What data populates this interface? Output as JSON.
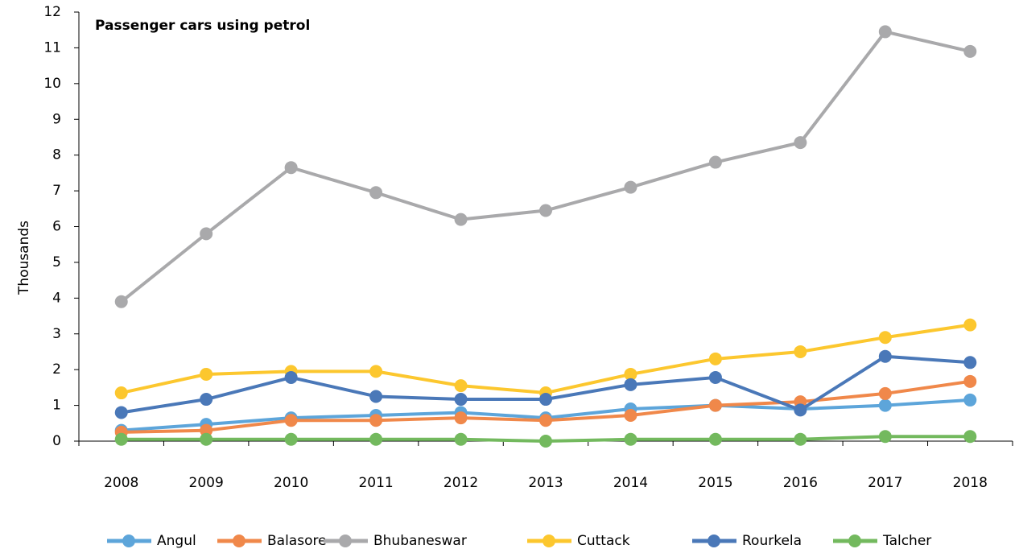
{
  "chart_data": {
    "type": "line",
    "title": "Passenger cars using petrol",
    "y_label": "Thousands",
    "categories": [
      "2008",
      "2009",
      "2010",
      "2011",
      "2012",
      "2013",
      "2014",
      "2015",
      "2016",
      "2017",
      "2018"
    ],
    "ylim": [
      0,
      12
    ],
    "yticks": [
      0,
      1,
      2,
      3,
      4,
      5,
      6,
      7,
      8,
      9,
      10,
      11,
      12
    ],
    "grid": false,
    "legend": "bottom",
    "series": [
      {
        "name": "Angul",
        "color": "#5da5da",
        "values": [
          0.3,
          0.47,
          0.65,
          0.72,
          0.8,
          0.65,
          0.9,
          1.0,
          0.9,
          1.0,
          1.15
        ]
      },
      {
        "name": "Balasore",
        "color": "#f0884a",
        "values": [
          0.25,
          0.3,
          0.58,
          0.58,
          0.65,
          0.58,
          0.72,
          1.0,
          1.1,
          1.33,
          1.67
        ]
      },
      {
        "name": "Bhubaneswar",
        "color": "#a9a9ab",
        "values": [
          3.9,
          5.8,
          7.65,
          6.95,
          6.2,
          6.45,
          7.1,
          7.8,
          8.35,
          11.45,
          10.9
        ]
      },
      {
        "name": "Cuttack",
        "color": "#fcc72e",
        "values": [
          1.35,
          1.87,
          1.95,
          1.95,
          1.55,
          1.35,
          1.87,
          2.3,
          2.5,
          2.9,
          3.25
        ]
      },
      {
        "name": "Rourkela",
        "color": "#4a78b8",
        "values": [
          0.8,
          1.17,
          1.78,
          1.25,
          1.17,
          1.17,
          1.58,
          1.78,
          0.87,
          2.37,
          2.2
        ]
      },
      {
        "name": "Talcher",
        "color": "#73b95e",
        "values": [
          0.05,
          0.05,
          0.05,
          0.05,
          0.05,
          0,
          0.05,
          0.05,
          0.05,
          0.13,
          0.13
        ]
      }
    ]
  }
}
